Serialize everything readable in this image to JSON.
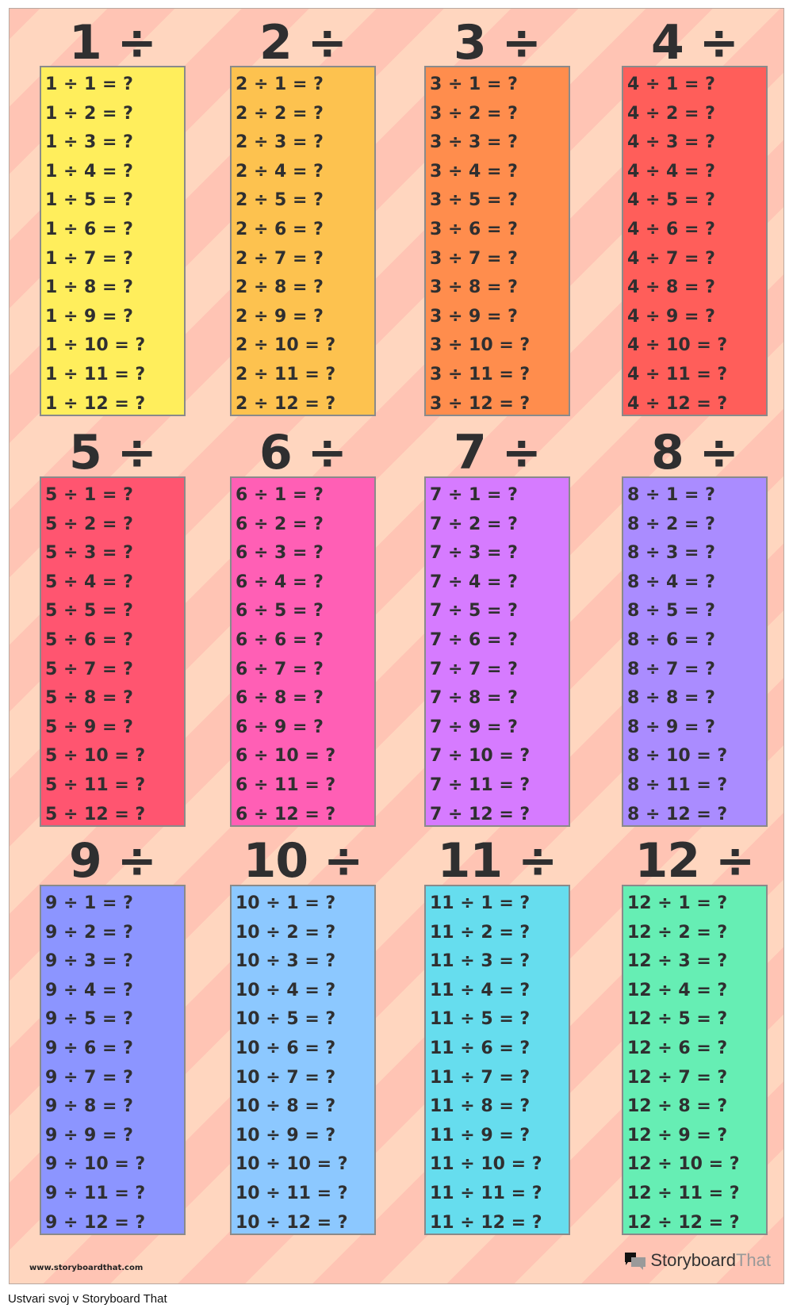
{
  "tables": [
    {
      "heading": "1 ÷",
      "color": "#FFEE5C",
      "items": [
        "1 ÷ 1 = ?",
        "1 ÷ 2 = ?",
        "1 ÷ 3 = ?",
        "1 ÷ 4 = ?",
        "1 ÷ 5 = ?",
        "1 ÷ 6 = ?",
        "1 ÷ 7 = ?",
        "1 ÷ 8 = ?",
        "1 ÷ 9 = ?",
        "1 ÷ 10 = ?",
        "1 ÷ 11 = ?",
        "1 ÷ 12 = ?"
      ]
    },
    {
      "heading": "2 ÷",
      "color": "#FDC24F",
      "items": [
        "2 ÷ 1 = ?",
        "2 ÷ 2 = ?",
        "2 ÷ 3 = ?",
        "2 ÷ 4 = ?",
        "2 ÷ 5 = ?",
        "2 ÷ 6 = ?",
        "2 ÷ 7 = ?",
        "2 ÷ 8 = ?",
        "2 ÷ 9 = ?",
        "2 ÷ 10 = ?",
        "2 ÷ 11 = ?",
        "2 ÷ 12 = ?"
      ]
    },
    {
      "heading": "3 ÷",
      "color": "#FF8D4D",
      "items": [
        "3 ÷ 1 = ?",
        "3 ÷ 2 = ?",
        "3 ÷ 3 = ?",
        "3 ÷ 4 = ?",
        "3 ÷ 5 = ?",
        "3 ÷ 6 = ?",
        "3 ÷ 7 = ?",
        "3 ÷ 8 = ?",
        "3 ÷ 9 = ?",
        "3 ÷ 10 = ?",
        "3 ÷ 11 = ?",
        "3 ÷ 12 = ?"
      ]
    },
    {
      "heading": "4 ÷",
      "color": "#FF5E5A",
      "items": [
        "4 ÷ 1 = ?",
        "4 ÷ 2 = ?",
        "4 ÷ 3 = ?",
        "4 ÷ 4 = ?",
        "4 ÷ 5 = ?",
        "4 ÷ 6 = ?",
        "4 ÷ 7 = ?",
        "4 ÷ 8 = ?",
        "4 ÷ 9 = ?",
        "4 ÷ 10 = ?",
        "4 ÷ 11 = ?",
        "4 ÷ 12 = ?"
      ]
    },
    {
      "heading": "5 ÷",
      "color": "#FF5570",
      "items": [
        "5 ÷ 1 = ?",
        "5 ÷ 2 = ?",
        "5 ÷ 3 = ?",
        "5 ÷ 4 = ?",
        "5 ÷ 5 = ?",
        "5 ÷ 6 = ?",
        "5 ÷ 7 = ?",
        "5 ÷ 8 = ?",
        "5 ÷ 9 = ?",
        "5 ÷ 10 = ?",
        "5 ÷ 11 = ?",
        "5 ÷ 12 = ?"
      ]
    },
    {
      "heading": "6 ÷",
      "color": "#FF5FB5",
      "items": [
        "6 ÷ 1 = ?",
        "6 ÷ 2 = ?",
        "6 ÷ 3 = ?",
        "6 ÷ 4 = ?",
        "6 ÷ 5 = ?",
        "6 ÷ 6 = ?",
        "6 ÷ 7 = ?",
        "6 ÷ 8 = ?",
        "6 ÷ 9 = ?",
        "6 ÷ 10 = ?",
        "6 ÷ 11 = ?",
        "6 ÷ 12 = ?"
      ]
    },
    {
      "heading": "7 ÷",
      "color": "#D67BFF",
      "items": [
        "7 ÷ 1 = ?",
        "7 ÷ 2 = ?",
        "7 ÷ 3 = ?",
        "7 ÷ 4 = ?",
        "7 ÷ 5 = ?",
        "7 ÷ 6 = ?",
        "7 ÷ 7 = ?",
        "7 ÷ 8 = ?",
        "7 ÷ 9 = ?",
        "7 ÷ 10 = ?",
        "7 ÷ 11 = ?",
        "7 ÷ 12 = ?"
      ]
    },
    {
      "heading": "8 ÷",
      "color": "#AA8CFF",
      "items": [
        "8 ÷ 1 = ?",
        "8 ÷ 2 = ?",
        "8 ÷ 3 = ?",
        "8 ÷ 4 = ?",
        "8 ÷ 5 = ?",
        "8 ÷ 6 = ?",
        "8 ÷ 7 = ?",
        "8 ÷ 8 = ?",
        "8 ÷ 9 = ?",
        "8 ÷ 10 = ?",
        "8 ÷ 11 = ?",
        "8 ÷ 12 = ?"
      ]
    },
    {
      "heading": "9 ÷",
      "color": "#8C95FF",
      "items": [
        "9 ÷ 1 = ?",
        "9 ÷ 2 = ?",
        "9 ÷ 3 = ?",
        "9 ÷ 4 = ?",
        "9 ÷ 5 = ?",
        "9 ÷ 6 = ?",
        "9 ÷ 7 = ?",
        "9 ÷ 8 = ?",
        "9 ÷ 9 = ?",
        "9 ÷ 10 = ?",
        "9 ÷ 11 = ?",
        "9 ÷ 12 = ?"
      ]
    },
    {
      "heading": "10 ÷",
      "color": "#8CC8FF",
      "items": [
        "10 ÷ 1 = ?",
        "10 ÷ 2 = ?",
        "10 ÷ 3 = ?",
        "10 ÷ 4 = ?",
        "10 ÷ 5 = ?",
        "10 ÷ 6 = ?",
        "10 ÷ 7 = ?",
        "10 ÷ 8 = ?",
        "10 ÷ 9 = ?",
        "10 ÷ 10 = ?",
        "10 ÷ 11 = ?",
        "10 ÷ 12 = ?"
      ]
    },
    {
      "heading": "11 ÷",
      "color": "#66DDEE",
      "items": [
        "11 ÷ 1 = ?",
        "11 ÷ 2 = ?",
        "11 ÷ 3 = ?",
        "11 ÷ 4 = ?",
        "11 ÷ 5 = ?",
        "11 ÷ 6 = ?",
        "11 ÷ 7 = ?",
        "11 ÷ 8 = ?",
        "11 ÷ 9 = ?",
        "11 ÷ 10 = ?",
        "11 ÷ 11 = ?",
        "11 ÷ 12 = ?"
      ]
    },
    {
      "heading": "12 ÷",
      "color": "#66EEB4",
      "items": [
        "12 ÷ 1 = ?",
        "12 ÷ 2 = ?",
        "12 ÷ 3 = ?",
        "12 ÷ 4 = ?",
        "12 ÷ 5 = ?",
        "12 ÷ 6 = ?",
        "12 ÷ 7 = ?",
        "12 ÷ 8 = ?",
        "12 ÷ 9 = ?",
        "12 ÷ 10 = ?",
        "12 ÷ 11 = ?",
        "12 ÷ 12 = ?"
      ]
    }
  ],
  "footer": {
    "url": "www.storyboardthat.com",
    "logo_part1": "Storyboard",
    "logo_part2": "That",
    "logo_icon": "speech-bubbles-icon"
  },
  "caption": "Ustvari svoj v Storyboard That"
}
